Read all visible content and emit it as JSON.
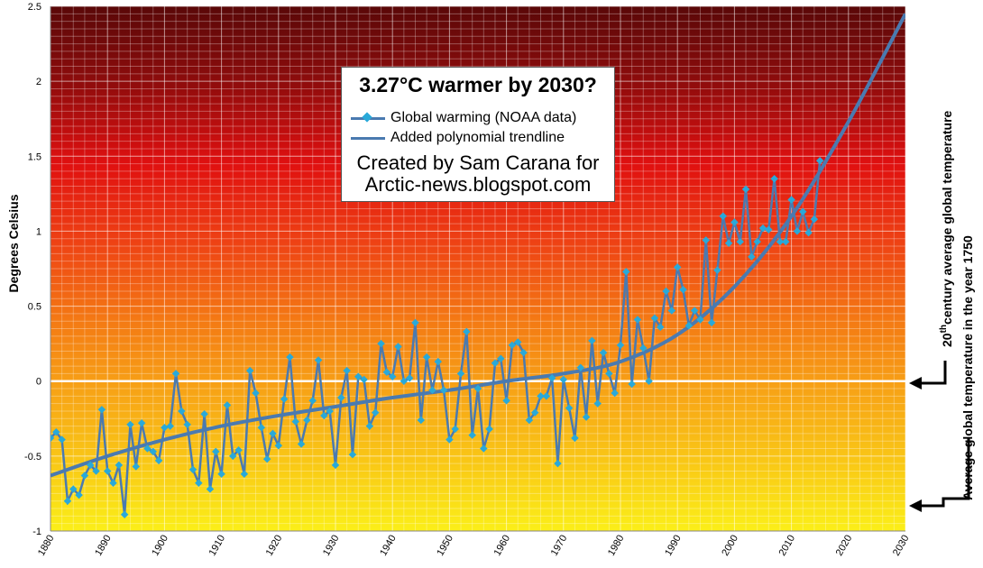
{
  "chart_data": {
    "type": "line",
    "title": "3.27°C warmer by 2030?",
    "ylabel": "Degrees Celsius",
    "xlabel": "",
    "xlim": [
      1880,
      2030
    ],
    "ylim": [
      -1,
      2.5
    ],
    "x_ticks": [
      "1880",
      "1890",
      "1900",
      "1910",
      "1920",
      "1930",
      "1940",
      "1950",
      "1960",
      "1970",
      "1980",
      "1990",
      "2000",
      "2010",
      "2020",
      "2030"
    ],
    "y_ticks": [
      "2.5",
      "2",
      "1.5",
      "1",
      "0.5",
      "0",
      "-0.5",
      "-1"
    ],
    "y_tick_values": [
      2.5,
      2,
      1.5,
      1,
      0.5,
      0,
      -0.5,
      -1
    ],
    "x_tick_values": [
      1880,
      1890,
      1900,
      1910,
      1920,
      1930,
      1940,
      1950,
      1960,
      1970,
      1980,
      1990,
      2000,
      2010,
      2020,
      2030
    ],
    "grid": true,
    "reference_lines": [
      {
        "y": 0,
        "label": "20th century average global temperature"
      },
      {
        "y": -0.85,
        "label": "Average global temperature in the year 1750"
      }
    ],
    "series": [
      {
        "name": "Global warming (NOAA data)",
        "color": "#4a7ab0",
        "marker_color": "#29a9d9",
        "x_start": 1880,
        "values": [
          -0.38,
          -0.34,
          -0.39,
          -0.8,
          -0.72,
          -0.76,
          -0.63,
          -0.56,
          -0.6,
          -0.19,
          -0.6,
          -0.68,
          -0.56,
          -0.89,
          -0.29,
          -0.57,
          -0.28,
          -0.45,
          -0.47,
          -0.53,
          -0.31,
          -0.3,
          0.05,
          -0.2,
          -0.29,
          -0.59,
          -0.68,
          -0.22,
          -0.72,
          -0.47,
          -0.62,
          -0.16,
          -0.5,
          -0.46,
          -0.62,
          0.07,
          -0.08,
          -0.31,
          -0.52,
          -0.35,
          -0.43,
          -0.12,
          0.16,
          -0.27,
          -0.42,
          -0.26,
          -0.13,
          0.14,
          -0.23,
          -0.2,
          -0.56,
          -0.11,
          0.07,
          -0.49,
          0.03,
          0.01,
          -0.3,
          -0.21,
          0.25,
          0.06,
          0.03,
          0.23,
          0.0,
          0.02,
          0.39,
          -0.26,
          0.16,
          -0.06,
          0.13,
          -0.06,
          -0.39,
          -0.32,
          0.05,
          0.33,
          -0.36,
          -0.05,
          -0.45,
          -0.32,
          0.12,
          0.15,
          -0.13,
          0.24,
          0.26,
          0.19,
          -0.26,
          -0.21,
          -0.1,
          -0.1,
          0.02,
          -0.55,
          0.01,
          -0.18,
          -0.38,
          0.09,
          -0.24,
          0.27,
          -0.15,
          0.19,
          0.05,
          -0.08,
          0.24,
          0.73,
          -0.02,
          0.41,
          0.22,
          0.0,
          0.42,
          0.36,
          0.6,
          0.47,
          0.76,
          0.61,
          0.37,
          0.47,
          0.41,
          0.94,
          0.39,
          0.74,
          1.1,
          0.92,
          1.06,
          0.93,
          1.28,
          0.83,
          0.93,
          1.02,
          1.01,
          1.35,
          0.93,
          0.93,
          1.21,
          1.0,
          1.13,
          0.99,
          1.08,
          1.47
        ]
      },
      {
        "name": "Added polynomial trendline",
        "color": "#4a7ab0",
        "x": [
          1880,
          1890,
          1900,
          1910,
          1920,
          1930,
          1940,
          1950,
          1960,
          1970,
          1980,
          1990,
          2000,
          2010,
          2020,
          2030
        ],
        "values": [
          -0.63,
          -0.5,
          -0.39,
          -0.3,
          -0.23,
          -0.17,
          -0.11,
          -0.06,
          0.0,
          0.05,
          0.13,
          0.31,
          0.63,
          1.1,
          1.73,
          2.45
        ]
      }
    ]
  },
  "legend": {
    "line1": "Global warming (NOAA data)",
    "line2": "Added polynomial trendline"
  },
  "credit": {
    "line1": "Created by Sam Carana for",
    "line2": "Arctic-news.blogspot.com"
  },
  "annotations": {
    "ref_20th_century": "century average global temperature",
    "ref_20th_century_num": "20",
    "ref_20th_century_sup": "th",
    "ref_1750": "Average global temperature in the year 1750"
  }
}
